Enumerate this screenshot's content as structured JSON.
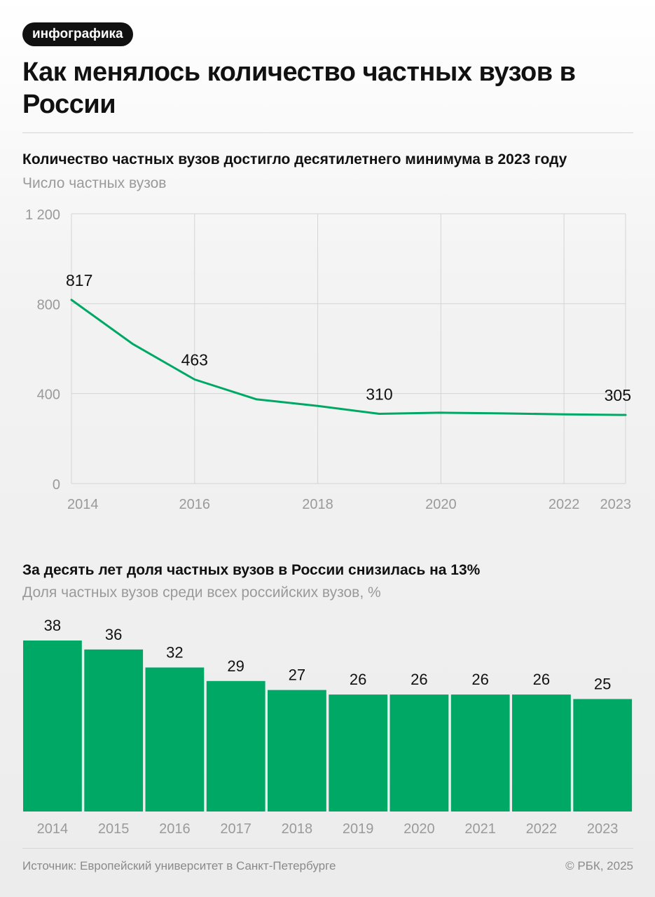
{
  "badge": "инфографика",
  "title": "Как менялось количество частных вузов в России",
  "colors": {
    "accent": "#00a865",
    "grid": "#d4d4d4",
    "axis_text": "#9a9a9a",
    "value_text": "#111111"
  },
  "chart_data": [
    {
      "type": "line",
      "title": "Количество частных вузов достигло десятилетнего минимума в 2023 году",
      "ylabel": "Число частных вузов",
      "xlabel": "",
      "x": [
        2014,
        2015,
        2016,
        2017,
        2018,
        2019,
        2020,
        2021,
        2022,
        2023
      ],
      "values": [
        817,
        620,
        463,
        375,
        345,
        310,
        315,
        312,
        308,
        305
      ],
      "labels": [
        {
          "x": 2014,
          "text": "817"
        },
        {
          "x": 2016,
          "text": "463"
        },
        {
          "x": 2019,
          "text": "310"
        },
        {
          "x": 2023,
          "text": "305"
        }
      ],
      "ylim": [
        0,
        1200
      ],
      "yticks": [
        0,
        400,
        800,
        1200
      ],
      "ytick_labels": [
        "0",
        "400",
        "800",
        "1 200"
      ],
      "xticks": [
        2014,
        2016,
        2018,
        2020,
        2022,
        2023
      ],
      "xtick_labels": [
        "2014",
        "2016",
        "2018",
        "2020",
        "2022",
        "2023"
      ],
      "grid": true
    },
    {
      "type": "bar",
      "title": "За десять лет доля частных вузов в России снизилась на 13%",
      "ylabel": "Доля частных вузов среди всех российских вузов, %",
      "xlabel": "",
      "categories": [
        "2014",
        "2015",
        "2016",
        "2017",
        "2018",
        "2019",
        "2020",
        "2021",
        "2022",
        "2023"
      ],
      "values": [
        38,
        36,
        32,
        29,
        27,
        26,
        26,
        26,
        26,
        25
      ],
      "value_labels": [
        "38",
        "36",
        "32",
        "29",
        "27",
        "26",
        "26",
        "26",
        "26",
        "25"
      ],
      "ylim": [
        0,
        38
      ],
      "grid": false
    }
  ],
  "footer": {
    "source": "Источник: Европейский университет в Санкт-Петербурге",
    "copyright": "© РБК, 2025"
  }
}
